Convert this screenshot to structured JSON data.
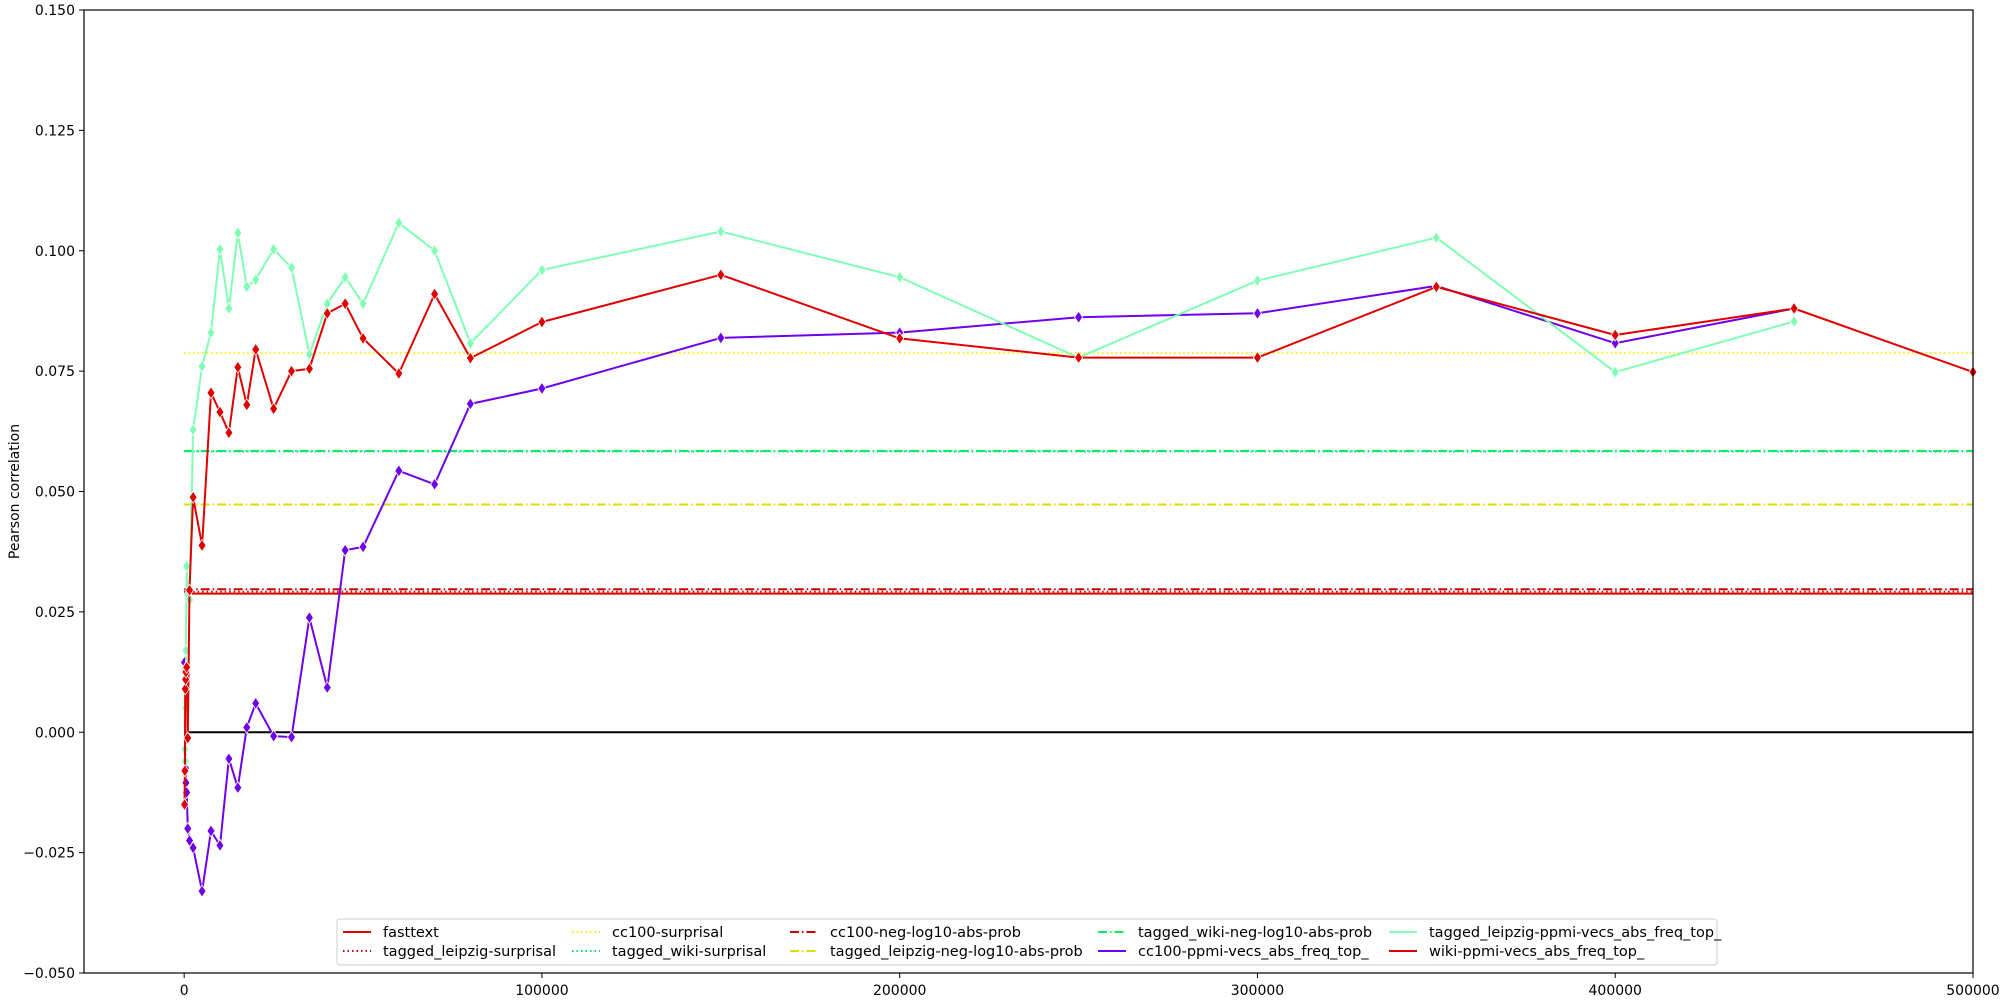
{
  "chart_data": {
    "type": "line",
    "title": "",
    "xlabel": "",
    "ylabel": "Pearson correlation",
    "xlim": [
      -28000,
      500000
    ],
    "ylim": [
      -0.05,
      0.15
    ],
    "x_ticks": [
      0,
      100000,
      200000,
      300000,
      400000,
      500000
    ],
    "x_tick_labels": [
      "0",
      "100000",
      "200000",
      "300000",
      "400000",
      "500000"
    ],
    "y_ticks": [
      -0.05,
      -0.025,
      0.0,
      0.025,
      0.05,
      0.075,
      0.1,
      0.125,
      0.15
    ],
    "y_tick_labels": [
      "−0.050",
      "−0.025",
      "0.000",
      "0.025",
      "0.050",
      "0.075",
      "0.100",
      "0.125",
      "0.150"
    ],
    "grid": false,
    "legend_position": "lower-center",
    "zero_line": 0.0,
    "baselines": [
      {
        "name": "fasttext",
        "value": 0.0288,
        "color": "#e00000",
        "dash": "solid"
      },
      {
        "name": "tagged_leipzig-surprisal",
        "value": 0.0292,
        "color": "#d00000",
        "dash": "dotted"
      },
      {
        "name": "cc100-surprisal",
        "value": 0.0788,
        "color": "#ffef00",
        "dash": "dotted"
      },
      {
        "name": "tagged_wiki-surprisal",
        "value": 0.0583,
        "color": "#00e26d",
        "dash": "dotted"
      },
      {
        "name": "cc100-neg-log10-abs-prob",
        "value": 0.0297,
        "color": "#d00000",
        "dash": "dashdot"
      },
      {
        "name": "tagged_leipzig-neg-log10-abs-prob",
        "value": 0.0473,
        "color": "#dedd00",
        "dash": "dashdot"
      },
      {
        "name": "tagged_wiki-neg-log10-abs-prob",
        "value": 0.0584,
        "color": "#00f060",
        "dash": "dashdot"
      }
    ],
    "series": [
      {
        "name": "cc100-ppmi-vecs_abs_freq_top_",
        "color": "#7000e8",
        "x": [
          100,
          200,
          300,
          400,
          500,
          700,
          1000,
          1500,
          2500,
          5000,
          7500,
          10000,
          12500,
          15000,
          17500,
          20000,
          25000,
          30000,
          35000,
          40000,
          45000,
          50000,
          60000,
          70000,
          80000,
          100000,
          150000,
          200000,
          250000,
          300000,
          350000,
          400000,
          450000
        ],
        "values": [
          0.0145,
          0.013,
          0.011,
          -0.0075,
          -0.0105,
          -0.0125,
          -0.02,
          -0.0225,
          -0.024,
          -0.033,
          -0.0205,
          -0.0235,
          -0.0055,
          -0.0115,
          0.001,
          0.006,
          -0.0008,
          -0.001,
          0.0238,
          0.0093,
          0.0378,
          0.0385,
          0.0543,
          0.0515,
          0.0682,
          0.0714,
          0.0819,
          0.083,
          0.0862,
          0.087,
          0.0927,
          0.0808,
          0.088
        ]
      },
      {
        "name": "tagged_leipzig-ppmi-vecs_abs_freq_top_",
        "color": "#80ffb4",
        "x": [
          100,
          200,
          300,
          400,
          500,
          700,
          1000,
          1500,
          2500,
          5000,
          7500,
          10000,
          12500,
          15000,
          17500,
          20000,
          25000,
          30000,
          35000,
          40000,
          45000,
          50000,
          60000,
          70000,
          80000,
          100000,
          150000,
          200000,
          250000,
          300000,
          350000,
          400000,
          450000
        ],
        "values": [
          0.0125,
          -0.0035,
          -0.006,
          0.005,
          0.017,
          0.0345,
          0.0285,
          0.0275,
          0.0628,
          0.076,
          0.083,
          0.1003,
          0.088,
          0.1037,
          0.0925,
          0.094,
          0.1003,
          0.0965,
          0.0785,
          0.089,
          0.0945,
          0.089,
          0.1058,
          0.1,
          0.0808,
          0.096,
          0.104,
          0.0945,
          0.0778,
          0.0938,
          0.1027,
          0.0748,
          0.0853
        ]
      },
      {
        "name": "wiki-ppmi-vecs_abs_freq_top_",
        "color": "#e00000",
        "x": [
          100,
          200,
          300,
          400,
          500,
          700,
          1000,
          1500,
          2500,
          5000,
          7500,
          10000,
          12500,
          15000,
          17500,
          20000,
          25000,
          30000,
          35000,
          40000,
          45000,
          50000,
          60000,
          70000,
          80000,
          100000,
          150000,
          200000,
          250000,
          300000,
          350000,
          400000,
          450000,
          500000
        ],
        "values": [
          -0.015,
          -0.008,
          0.009,
          0.011,
          0.0125,
          0.0135,
          -0.0012,
          0.0295,
          0.0488,
          0.0388,
          0.0705,
          0.0665,
          0.0622,
          0.0758,
          0.068,
          0.0795,
          0.0672,
          0.075,
          0.0755,
          0.087,
          0.089,
          0.0818,
          0.0745,
          0.091,
          0.0777,
          0.0852,
          0.095,
          0.0818,
          0.0778,
          0.0778,
          0.0925,
          0.0825,
          0.088,
          0.0748
        ]
      }
    ],
    "legend": [
      [
        "fasttext",
        "tagged_leipzig-surprisal"
      ],
      [
        "cc100-surprisal",
        "tagged_wiki-surprisal"
      ],
      [
        "cc100-neg-log10-abs-prob",
        "tagged_leipzig-neg-log10-abs-prob"
      ],
      [
        "tagged_wiki-neg-log10-abs-prob",
        "cc100-ppmi-vecs_abs_freq_top_"
      ],
      [
        "tagged_leipzig-ppmi-vecs_abs_freq_top_",
        "wiki-ppmi-vecs_abs_freq_top_"
      ]
    ]
  }
}
